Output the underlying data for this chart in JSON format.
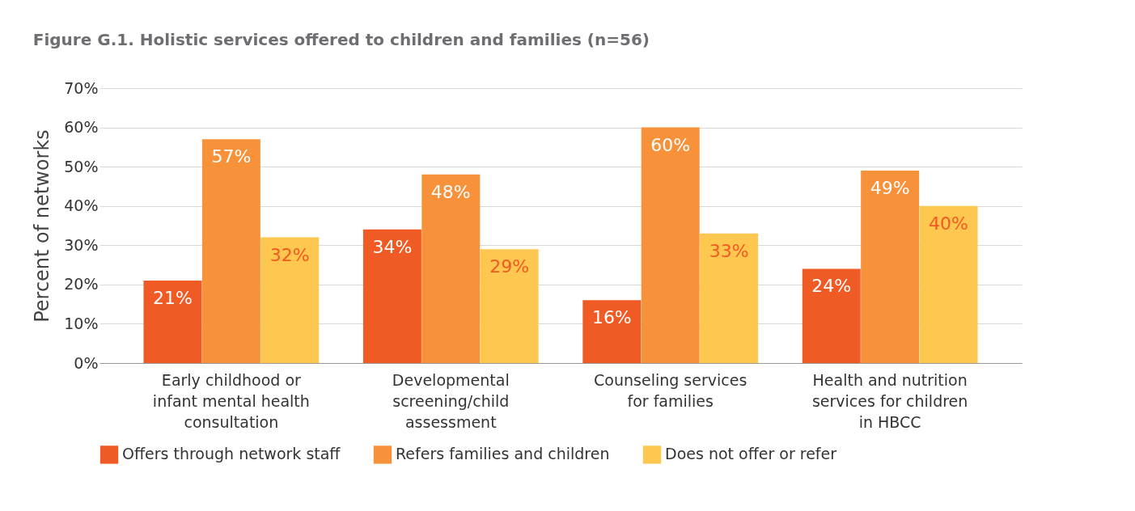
{
  "chart_data": {
    "type": "bar",
    "title": "Figure G.1. Holistic services offered to children and families (n=56)",
    "ylabel": "Percent of networks",
    "categories": [
      "Early childhood or infant mental health consultation",
      "Developmental screening/child assessment",
      "Counseling services for families",
      "Health and nutrition services for children in HBCC"
    ],
    "series": [
      {
        "name": "Offers through network staff",
        "color": "#f05a24",
        "values": [
          21,
          34,
          16,
          24
        ],
        "value_labels": [
          "21%",
          "34%",
          "16%",
          "24%"
        ]
      },
      {
        "name": "Refers families and children",
        "color": "#f7923a",
        "values": [
          57,
          48,
          60,
          49
        ],
        "value_labels": [
          "57%",
          "48%",
          "60%",
          "49%"
        ]
      },
      {
        "name": "Does not offer or refer",
        "color": "#fec74f",
        "values": [
          32,
          29,
          33,
          40
        ],
        "value_labels": [
          "32%",
          "29%",
          "33%",
          "40%"
        ]
      }
    ],
    "ylim": [
      0,
      70
    ],
    "yticks": [
      {
        "value": 0,
        "label": "0%"
      },
      {
        "value": 10,
        "label": "10%"
      },
      {
        "value": 20,
        "label": "20%"
      },
      {
        "value": 30,
        "label": "30%"
      },
      {
        "value": 40,
        "label": "40%"
      },
      {
        "value": 50,
        "label": "50%"
      },
      {
        "value": 60,
        "label": "60%"
      },
      {
        "value": 70,
        "label": "70%"
      }
    ],
    "grid": "y",
    "legend": "bottom"
  }
}
